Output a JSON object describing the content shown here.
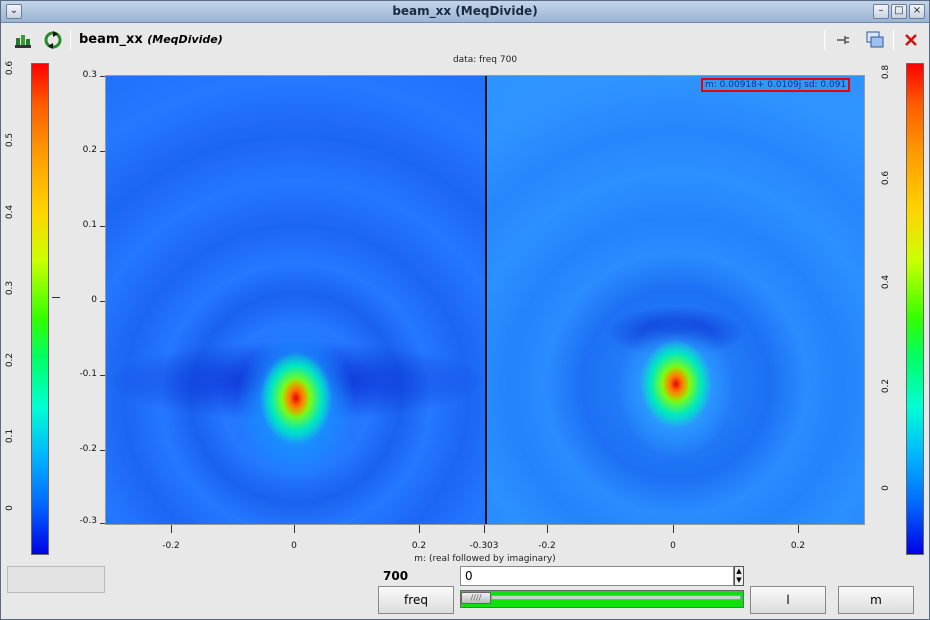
{
  "window": {
    "title": "beam_xx (MeqDivide)"
  },
  "toolbar": {
    "node_name": "beam_xx",
    "node_class": "(MeqDivide)"
  },
  "plot": {
    "title": "data: freq 700",
    "xlabel": "m: (real followed by imaginary)",
    "stats": "m: 0.00918+ 0.0109j sd: 0.091",
    "y_ticks": [
      "0.3",
      "0.2",
      "0.1",
      "0",
      "-0.1",
      "-0.2",
      "-0.3"
    ],
    "x_ticks": [
      "-0.2",
      "0",
      "0.2",
      "-0.303",
      "-0.2",
      "0",
      "0.2"
    ]
  },
  "colorbar_left": {
    "ticks": [
      "0.6",
      "0.5",
      "0.4",
      "0.3",
      "0.2",
      "0.1",
      "0"
    ]
  },
  "colorbar_right": {
    "ticks": [
      "0.8",
      "0.6",
      "0.4",
      "0.2",
      "0"
    ]
  },
  "controls": {
    "freq_value": "700",
    "spin_value": "0",
    "freq_button": "freq",
    "l_button": "l",
    "m_button": "m"
  },
  "colors": {
    "accent_red": "#ff0000",
    "slider_green": "#10e010",
    "plot_bg": "#1f6fff"
  }
}
